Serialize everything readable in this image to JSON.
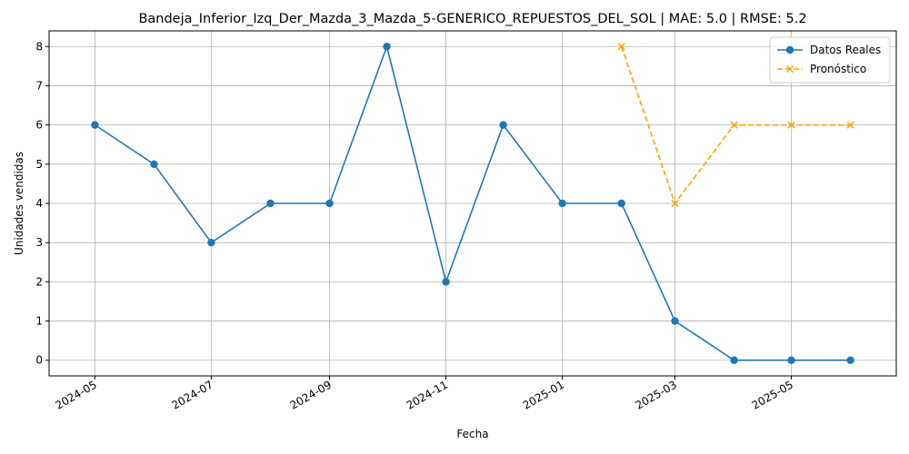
{
  "chart_data": {
    "type": "line",
    "title": "Bandeja_Inferior_Izq_Der_Mazda_3_Mazda_5-GENERICO_REPUESTOS_DEL_SOL | MAE: 5.0 | RMSE: 5.2",
    "xlabel": "Fecha",
    "ylabel": "Unidades vendidas",
    "ylim": [
      -0.4,
      8.4
    ],
    "xlim": [
      "2024-04-07",
      "2025-06-25"
    ],
    "x_ticks": [
      "2024-05",
      "2024-07",
      "2024-09",
      "2024-11",
      "2025-01",
      "2025-03",
      "2025-05"
    ],
    "y_ticks": [
      0,
      1,
      2,
      3,
      4,
      5,
      6,
      7,
      8
    ],
    "grid": true,
    "legend_position": "top-right",
    "series": [
      {
        "name": "Datos Reales",
        "color": "#1f77b4",
        "line_style": "solid",
        "marker": "circle",
        "x": [
          "2024-05-01",
          "2024-06-01",
          "2024-07-01",
          "2024-08-01",
          "2024-09-01",
          "2024-10-01",
          "2024-11-01",
          "2024-12-01",
          "2025-01-01",
          "2025-02-01",
          "2025-03-01",
          "2025-04-01",
          "2025-05-01",
          "2025-06-01"
        ],
        "values": [
          6,
          5,
          3,
          4,
          4,
          8,
          2,
          6,
          4,
          4,
          1,
          0,
          0,
          0
        ]
      },
      {
        "name": "Pronóstico",
        "color": "#ffa500",
        "line_style": "dashed",
        "marker": "x",
        "x": [
          "2025-02-01",
          "2025-03-01",
          "2025-04-01",
          "2025-05-01",
          "2025-06-01"
        ],
        "values": [
          8,
          4,
          6,
          6,
          6
        ]
      }
    ]
  }
}
